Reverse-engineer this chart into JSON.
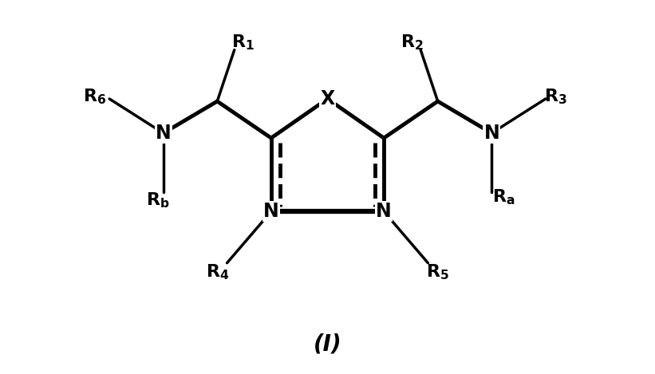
{
  "bg_color": "#ffffff",
  "line_color": "#000000",
  "lw": 2.5,
  "lw_bold": 3.5,
  "font_size_atom": 17,
  "font_size_R": 16,
  "title": "(I)",
  "title_fontsize": 20,
  "xlim": [
    0,
    10
  ],
  "ylim": [
    0,
    7.5
  ],
  "figw": 8.21,
  "figh": 4.69,
  "dpi": 100
}
